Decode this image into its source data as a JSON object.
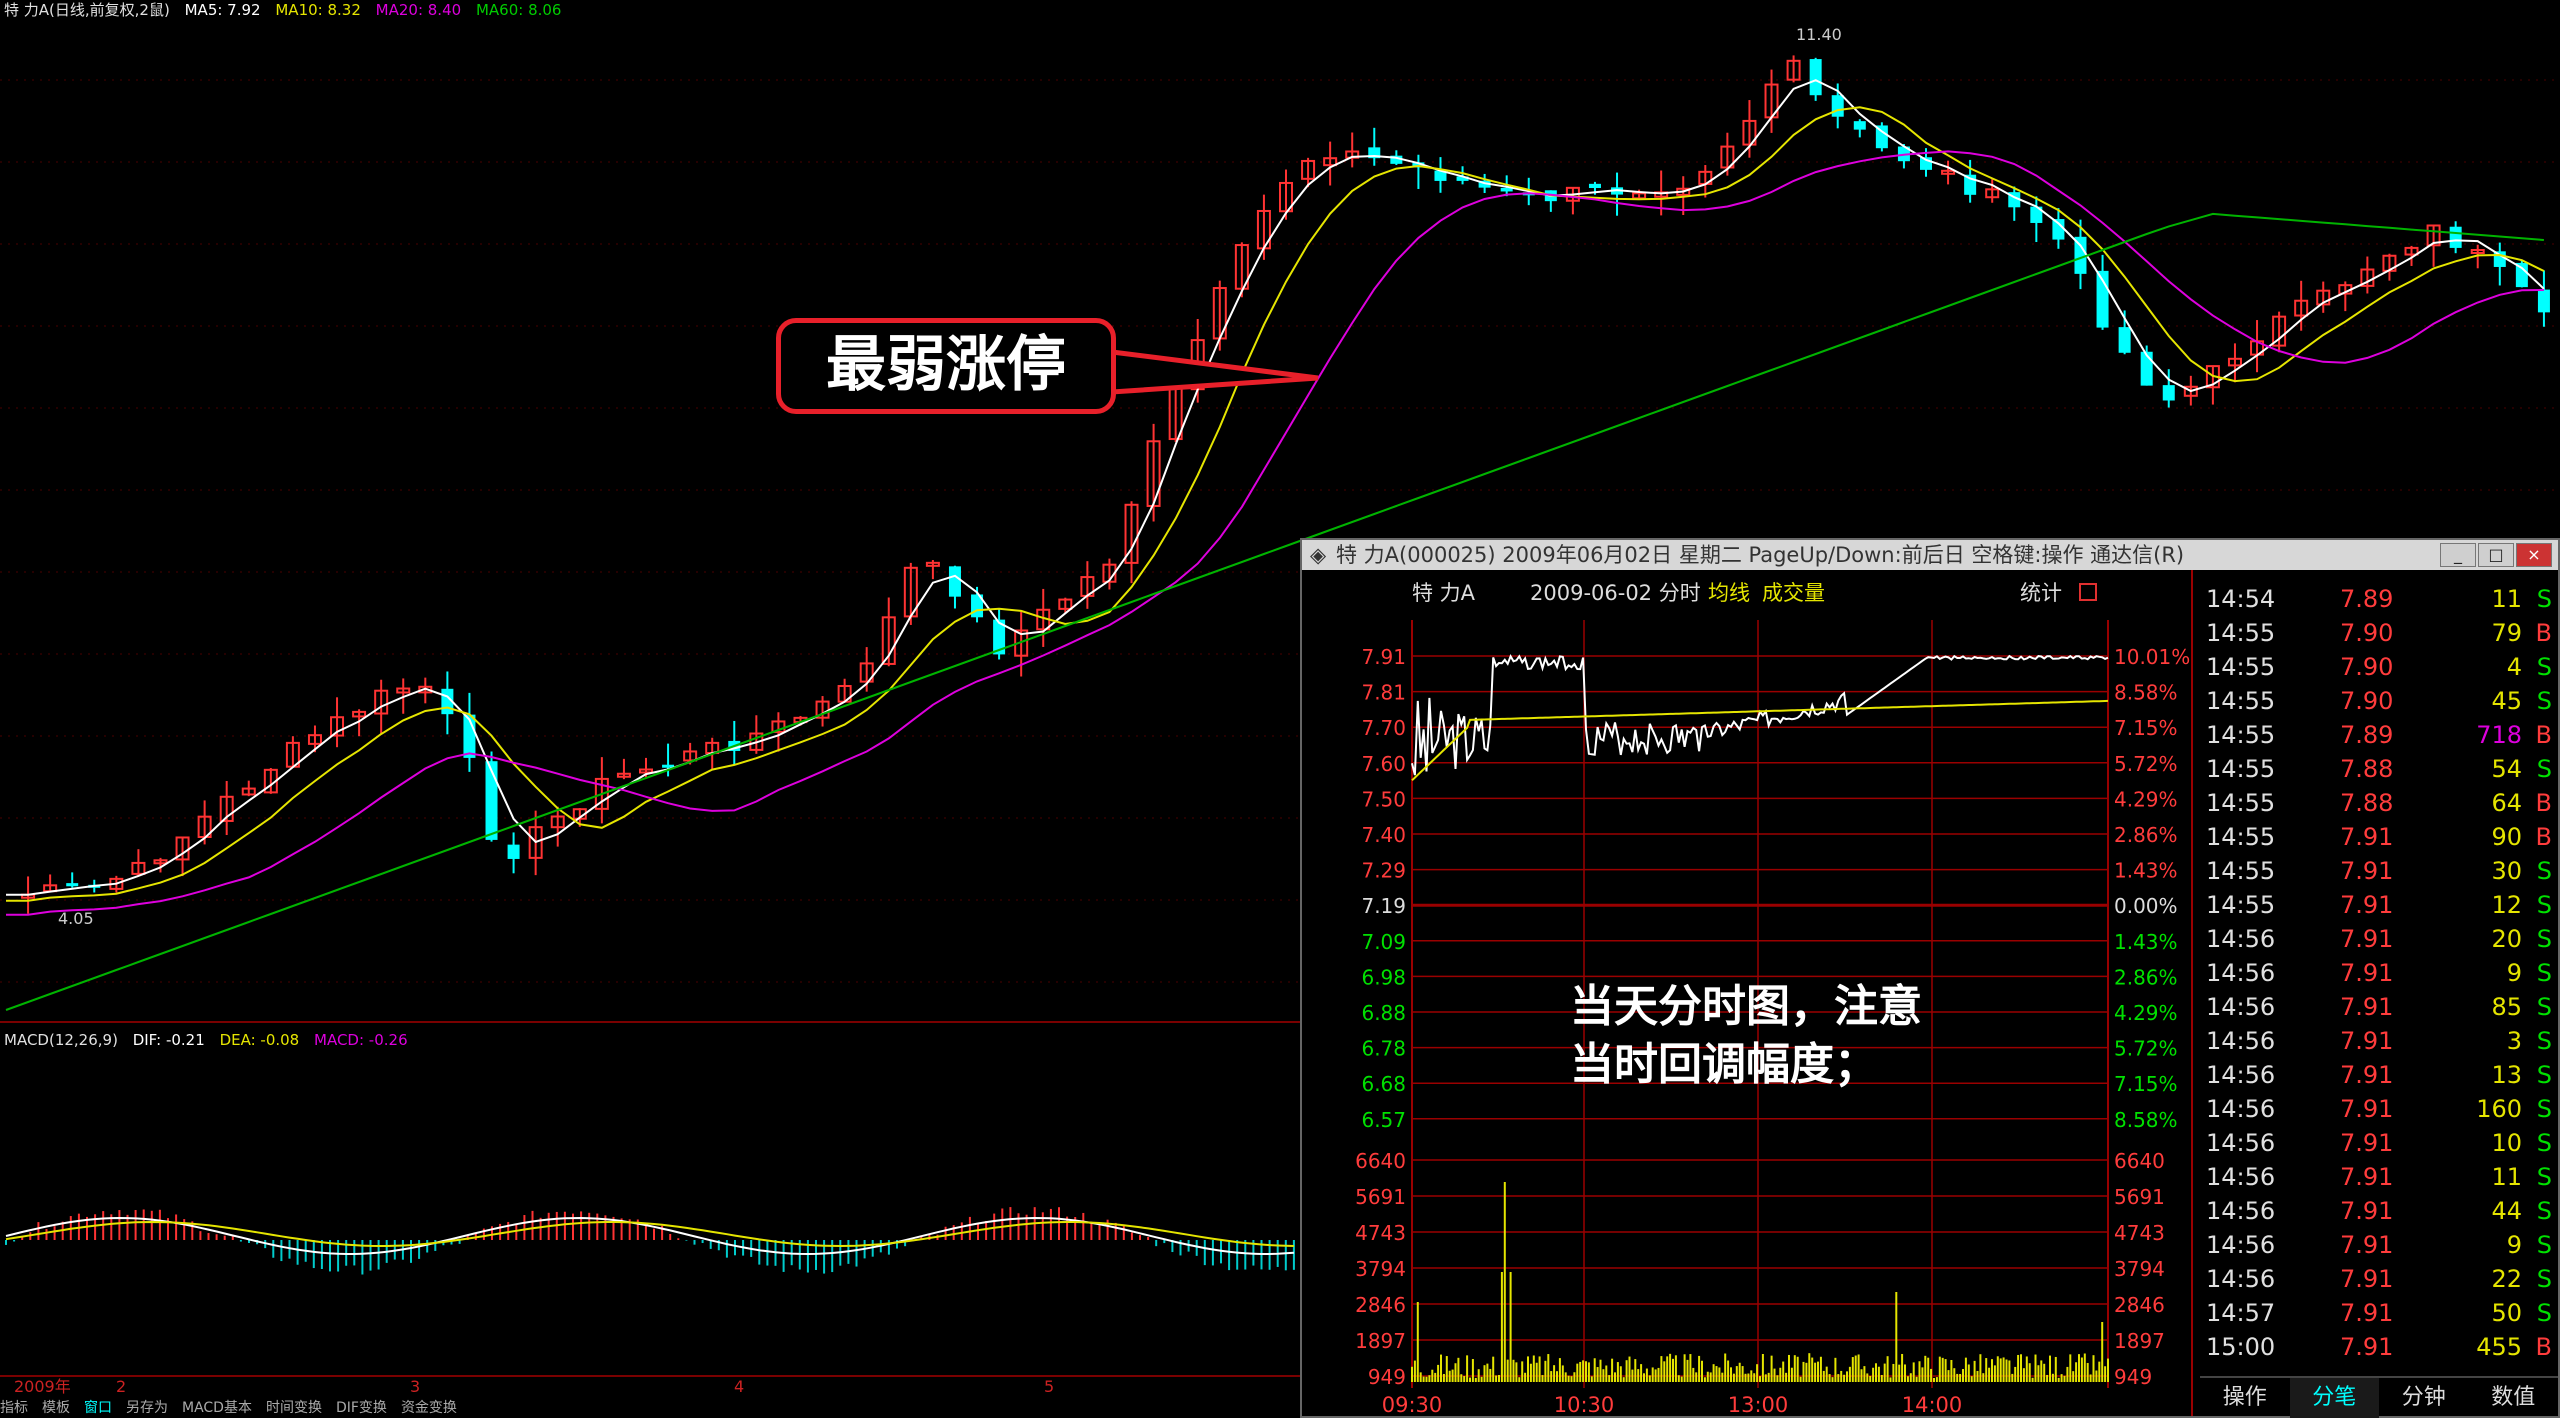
{
  "main_chart": {
    "header": {
      "stock": "特 力A(日线,前复权,2鼠)",
      "ma5": "MA5: 7.92",
      "ma10": "MA10: 8.32",
      "ma20": "MA20: 8.40",
      "ma60": "MA60: 8.06"
    },
    "high_label": "11.40",
    "low_label": "4.05",
    "macd_header": {
      "name": "MACD(12,26,9)",
      "dif": "DIF: -0.21",
      "dea": "DEA: -0.08",
      "macd": "MACD: -0.26"
    },
    "date_axis": [
      "2009年",
      "2",
      "3",
      "4",
      "5"
    ],
    "colors": {
      "ma5": "#ffffff",
      "ma10": "#e5e500",
      "ma20": "#dd00dd",
      "ma60": "#00b300",
      "up": "#ff3333",
      "down": "#00ffff"
    }
  },
  "status_tabs": [
    "指标",
    "模板",
    "窗口",
    "另存为",
    "MACD基本",
    "时间变换",
    "DIF变换",
    "资金变换"
  ],
  "callout": {
    "text": "最弱涨停"
  },
  "note": {
    "line1": "当天分时图，注意",
    "line2": "当时回调幅度；"
  },
  "popup": {
    "title": "特 力A(000025) 2009年06月02日 星期二 PageUp/Down:前后日 空格键:操作 通达信(R)",
    "window_buttons": [
      "_",
      "□",
      "×"
    ],
    "chart_header": {
      "name": "特 力A",
      "date": "2009-06-02 分时",
      "avg_label": "均线",
      "vol_label": "成交量",
      "stat_label": "统计"
    },
    "price_labels_left": [
      "7.91",
      "7.81",
      "7.70",
      "7.60",
      "7.50",
      "7.40",
      "7.29",
      "7.19",
      "7.09",
      "6.98",
      "6.88",
      "6.78",
      "6.68",
      "6.57"
    ],
    "pct_labels_right": [
      "10.01%",
      "8.58%",
      "7.15%",
      "5.72%",
      "4.29%",
      "2.86%",
      "1.43%",
      "0.00%",
      "1.43%",
      "2.86%",
      "4.29%",
      "5.72%",
      "7.15%",
      "8.58%"
    ],
    "volume_labels": [
      "6640",
      "5691",
      "4743",
      "3794",
      "2846",
      "1897",
      "949"
    ],
    "time_labels": [
      "09:30",
      "10:30",
      "13:00",
      "14:00"
    ],
    "ticks": [
      {
        "time": "14:54",
        "price": "7.89",
        "vol": "11",
        "flag": "S"
      },
      {
        "time": "14:55",
        "price": "7.90",
        "vol": "79",
        "flag": "B"
      },
      {
        "time": "14:55",
        "price": "7.90",
        "vol": "4",
        "flag": "S"
      },
      {
        "time": "14:55",
        "price": "7.90",
        "vol": "45",
        "flag": "S"
      },
      {
        "time": "14:55",
        "price": "7.89",
        "vol": "718",
        "flag": "B"
      },
      {
        "time": "14:55",
        "price": "7.88",
        "vol": "54",
        "flag": "S"
      },
      {
        "time": "14:55",
        "price": "7.88",
        "vol": "64",
        "flag": "B"
      },
      {
        "time": "14:55",
        "price": "7.91",
        "vol": "90",
        "flag": "B"
      },
      {
        "time": "14:55",
        "price": "7.91",
        "vol": "30",
        "flag": "S"
      },
      {
        "time": "14:55",
        "price": "7.91",
        "vol": "12",
        "flag": "S"
      },
      {
        "time": "14:56",
        "price": "7.91",
        "vol": "20",
        "flag": "S"
      },
      {
        "time": "14:56",
        "price": "7.91",
        "vol": "9",
        "flag": "S"
      },
      {
        "time": "14:56",
        "price": "7.91",
        "vol": "85",
        "flag": "S"
      },
      {
        "time": "14:56",
        "price": "7.91",
        "vol": "3",
        "flag": "S"
      },
      {
        "time": "14:56",
        "price": "7.91",
        "vol": "13",
        "flag": "S"
      },
      {
        "time": "14:56",
        "price": "7.91",
        "vol": "160",
        "flag": "S"
      },
      {
        "time": "14:56",
        "price": "7.91",
        "vol": "10",
        "flag": "S"
      },
      {
        "time": "14:56",
        "price": "7.91",
        "vol": "11",
        "flag": "S"
      },
      {
        "time": "14:56",
        "price": "7.91",
        "vol": "44",
        "flag": "S"
      },
      {
        "time": "14:56",
        "price": "7.91",
        "vol": "9",
        "flag": "S"
      },
      {
        "time": "14:56",
        "price": "7.91",
        "vol": "22",
        "flag": "S"
      },
      {
        "time": "14:57",
        "price": "7.91",
        "vol": "50",
        "flag": "S"
      },
      {
        "time": "15:00",
        "price": "7.91",
        "vol": "455",
        "flag": "B"
      }
    ],
    "bottom_tabs": [
      "操作",
      "分笔",
      "分钟",
      "数值"
    ],
    "active_tab": 1
  }
}
